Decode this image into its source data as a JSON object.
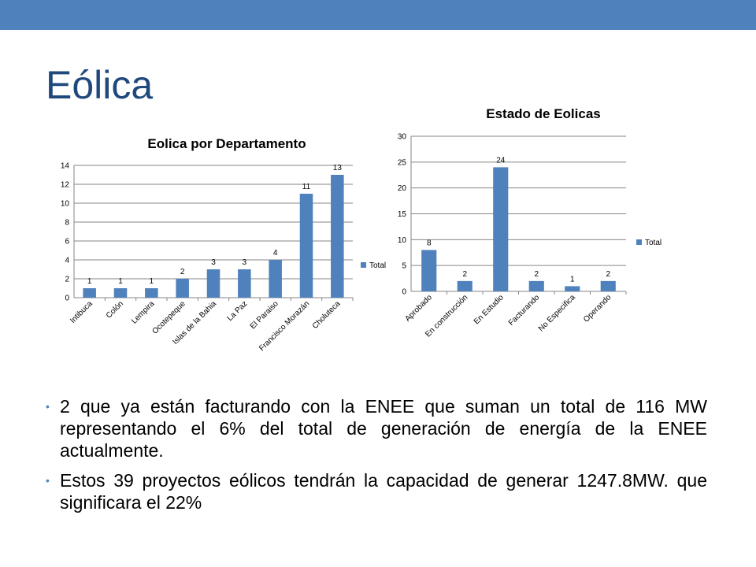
{
  "slide": {
    "title": "Eólica",
    "bullets": [
      "2 que ya están facturando con la ENEE que suman un total de 116 MW representando el 6% del total de generación de energía de la ENEE actualmente.",
      "Estos 39 proyectos eólicos tendrán la capacidad de generar 1247.8MW. que significara el 22%"
    ]
  },
  "colors": {
    "accent": "#4f81bd",
    "title": "#1f497d"
  },
  "chart_data": [
    {
      "type": "bar",
      "title": "Eolica por Departamento",
      "categories": [
        "Intibuca",
        "Colón",
        "Lempira",
        "Ocotepeque",
        "Islas de la Bahia",
        "La Paz",
        "El Paraiso",
        "Francisco Morazán",
        "Choluteca"
      ],
      "series": [
        {
          "name": "Total",
          "values": [
            1,
            1,
            1,
            2,
            3,
            3,
            4,
            11,
            13
          ],
          "color": "#4f81bd"
        }
      ],
      "yticks": [
        0,
        2,
        4,
        6,
        8,
        10,
        12,
        14
      ],
      "ylim": [
        0,
        14
      ],
      "grid": true,
      "legend": "right",
      "data_labels": true
    },
    {
      "type": "bar",
      "title": "Estado de Eolicas",
      "categories": [
        "Aprobado",
        "En construcción",
        "En Estudio",
        "Facturando",
        "No Especifica",
        "Operando"
      ],
      "series": [
        {
          "name": "Total",
          "values": [
            8,
            2,
            24,
            2,
            1,
            2
          ],
          "color": "#4f81bd"
        }
      ],
      "yticks": [
        0,
        5,
        10,
        15,
        20,
        25,
        30
      ],
      "ylim": [
        0,
        30
      ],
      "grid": true,
      "legend": "right",
      "data_labels": true
    }
  ]
}
